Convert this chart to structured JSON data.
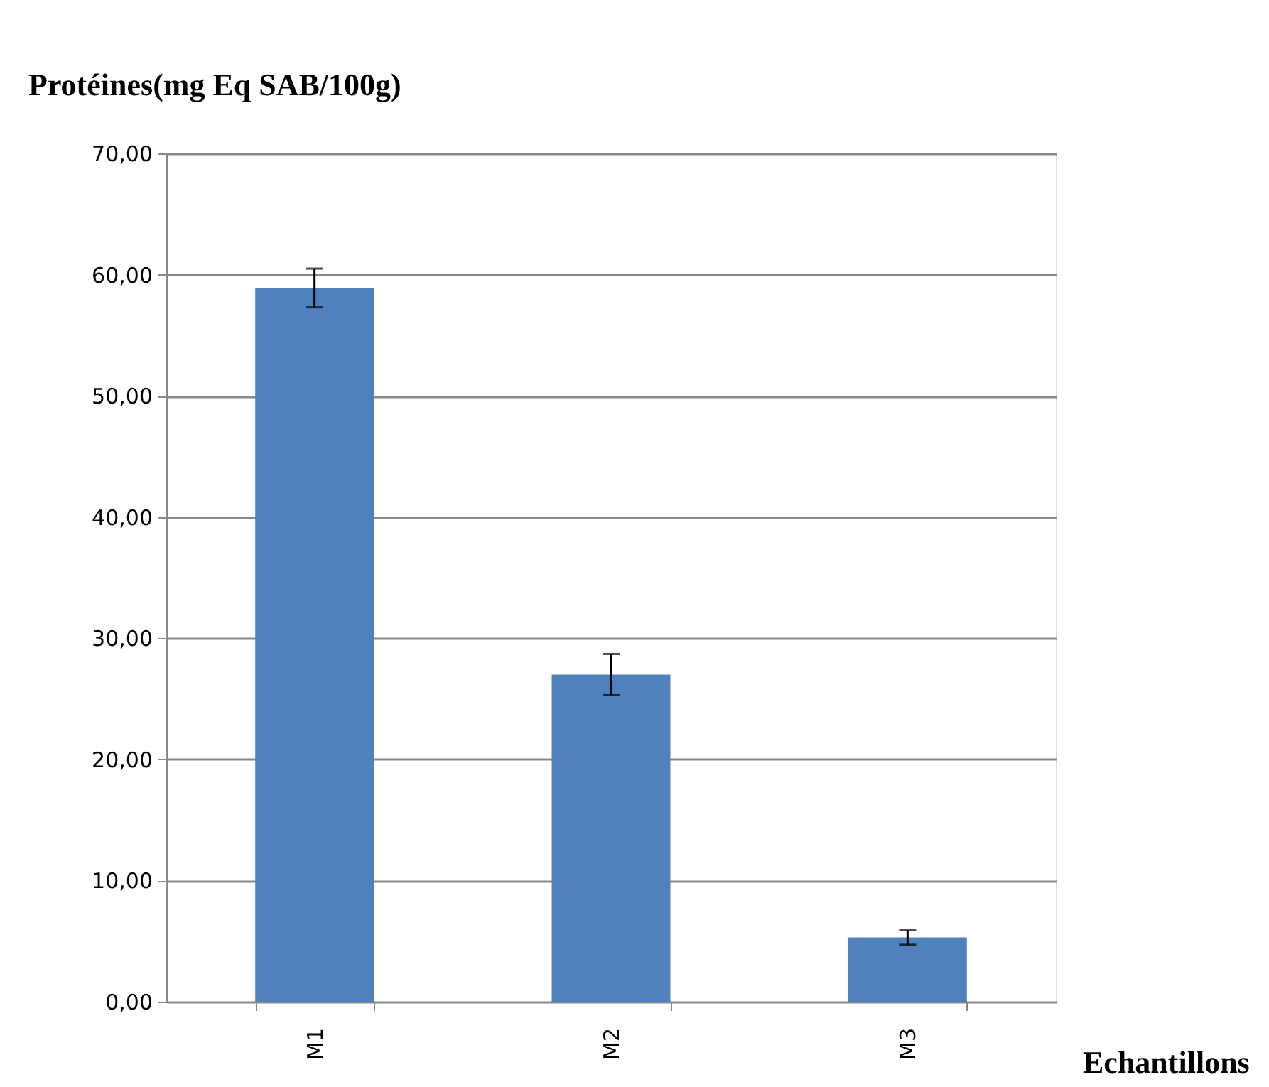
{
  "chart_data": {
    "type": "bar",
    "title": "Protéines(mg Eq SAB/100g)",
    "xlabel": "Echantillons",
    "categories": [
      "M1",
      "M2",
      "M3"
    ],
    "series": [
      {
        "color": "#4f81bd",
        "values": [
          58.9,
          27.0,
          5.3
        ],
        "errors": [
          1.6,
          1.7,
          0.6
        ]
      }
    ],
    "ylim": [
      0,
      70
    ],
    "yticks": [
      {
        "value": 0,
        "label": "0,00"
      },
      {
        "value": 10,
        "label": "10,00"
      },
      {
        "value": 20,
        "label": "20,00"
      },
      {
        "value": 30,
        "label": "30,00"
      },
      {
        "value": 40,
        "label": "40,00"
      },
      {
        "value": 50,
        "label": "50,00"
      },
      {
        "value": 60,
        "label": "60,00"
      },
      {
        "value": 70,
        "label": "70,00"
      }
    ],
    "grid": "y"
  }
}
